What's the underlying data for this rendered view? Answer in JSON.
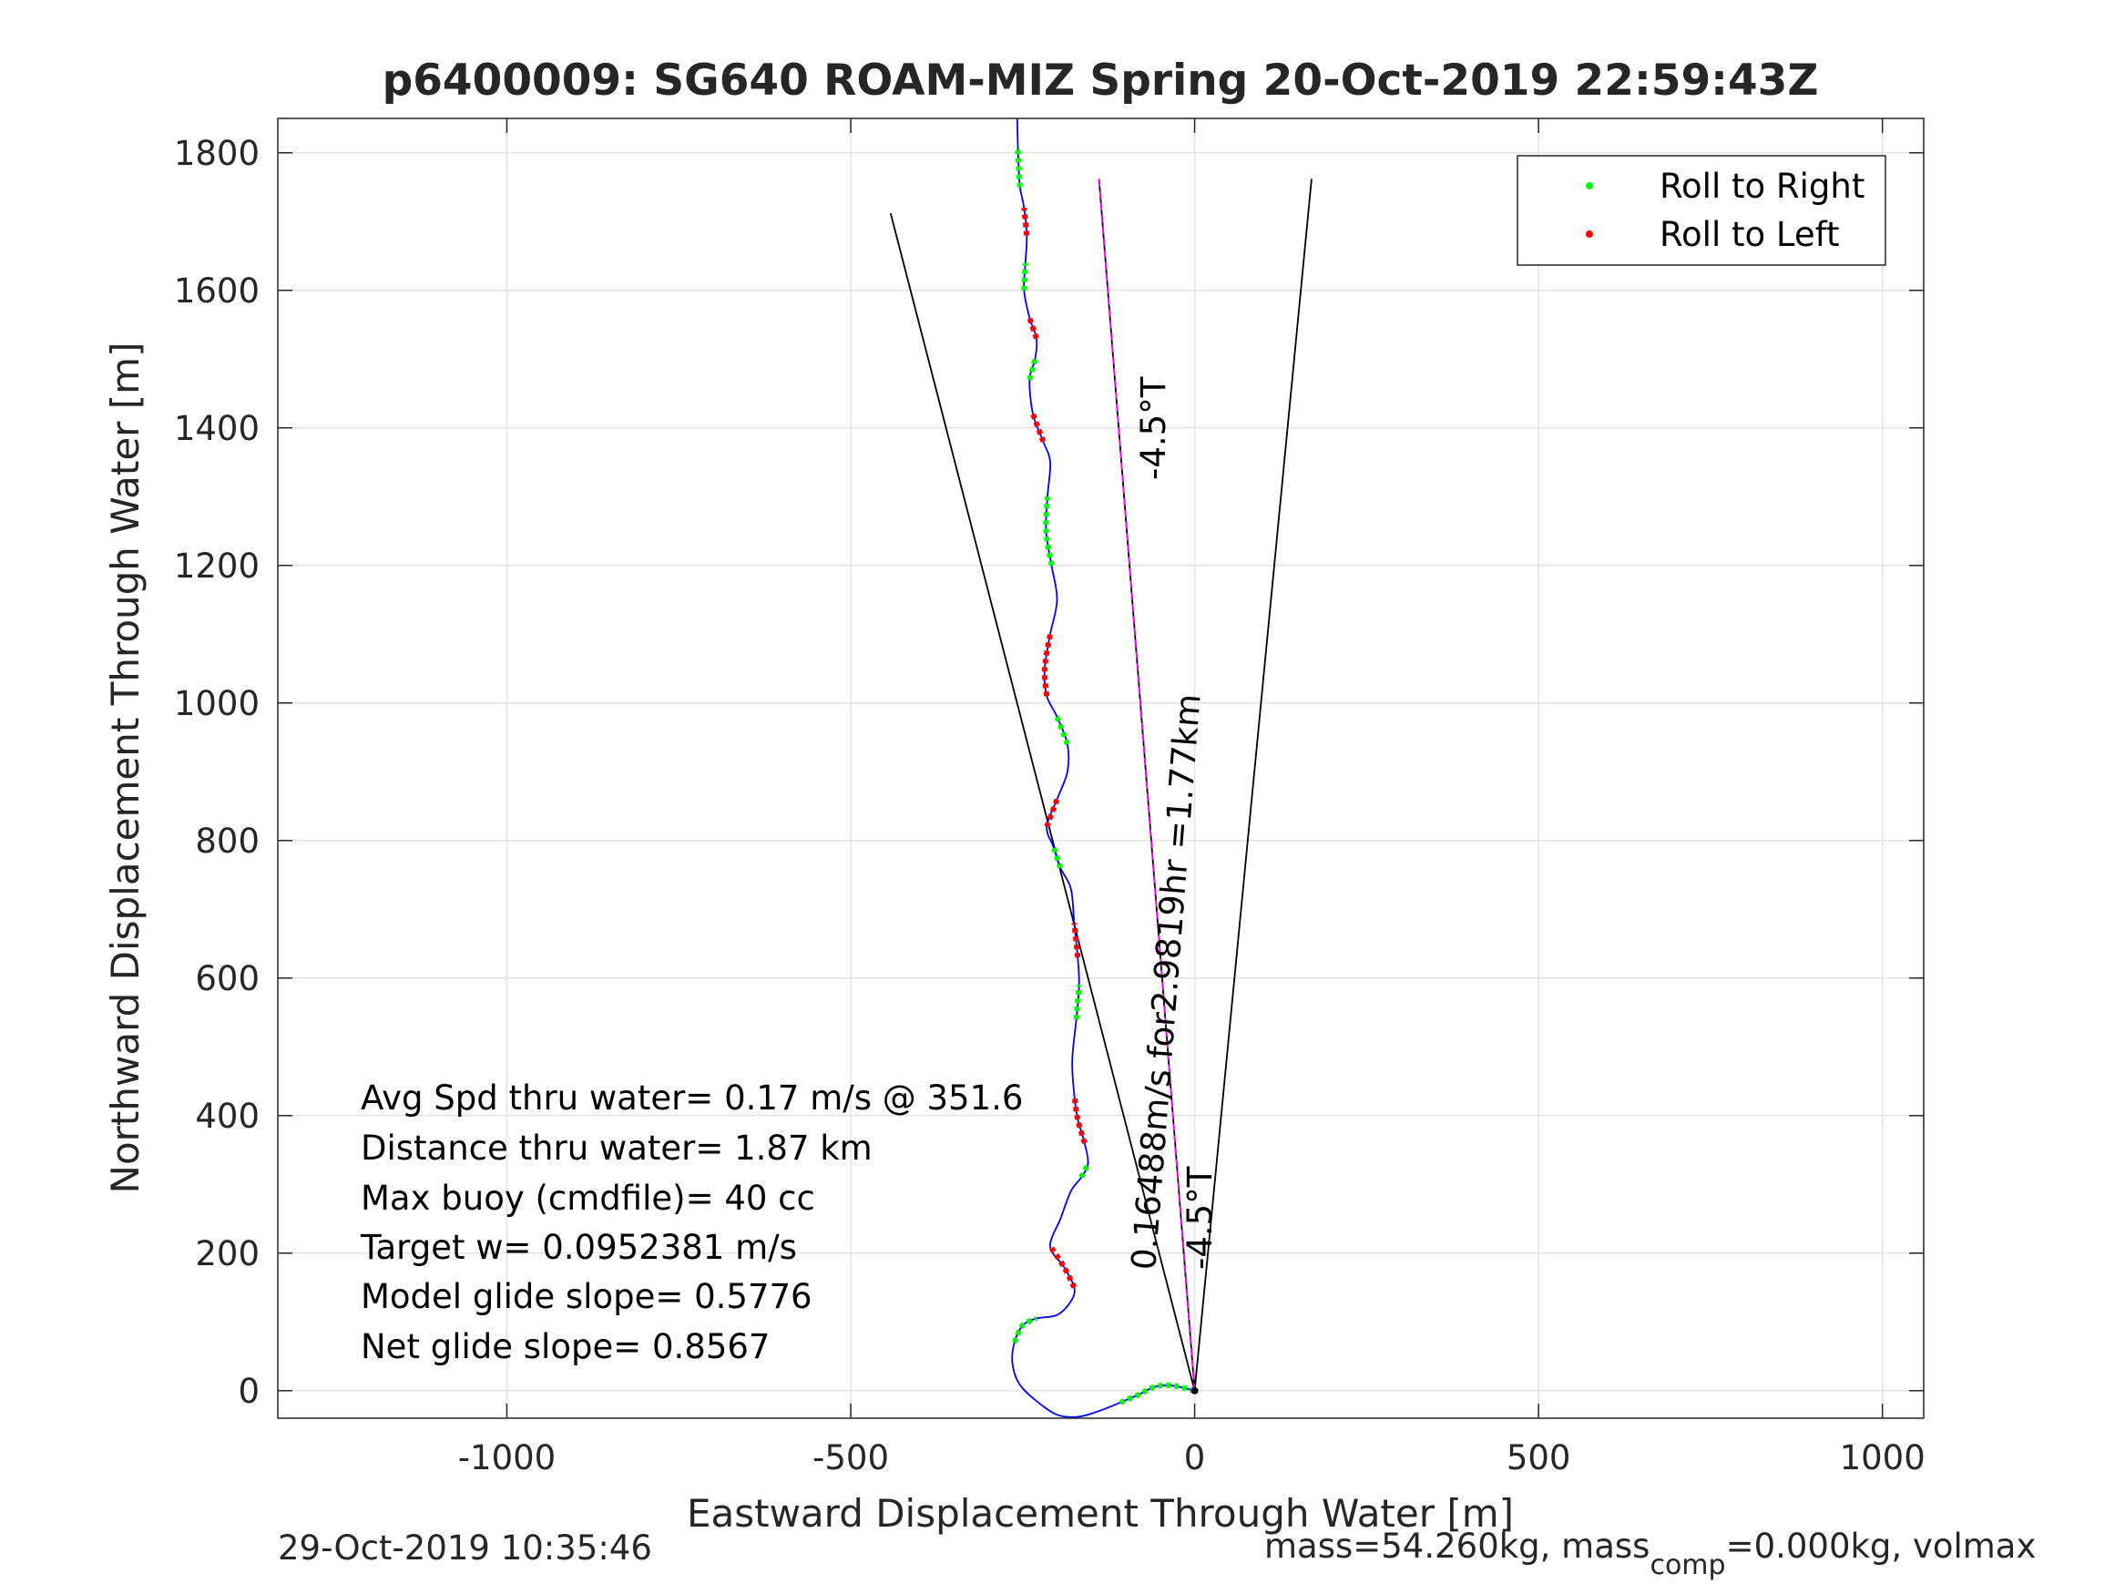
{
  "chart_data": {
    "type": "line",
    "title": "p6400009: SG640 ROAM-MIZ Spring 20-Oct-2019 22:59:43Z",
    "xlabel": "Eastward Displacement Through Water [m]",
    "ylabel": "Northward Displacement Through Water [m]",
    "xlim": [
      -1333,
      1060
    ],
    "ylim": [
      -40,
      1850
    ],
    "xticks": [
      -1000,
      -500,
      0,
      500,
      1000
    ],
    "xtick_labels": [
      "-1000",
      "-500",
      "0",
      "500",
      "1000"
    ],
    "yticks": [
      0,
      200,
      400,
      600,
      800,
      1000,
      1200,
      1400,
      1600,
      1800
    ],
    "ytick_labels": [
      "0",
      "200",
      "400",
      "600",
      "800",
      "1000",
      "1200",
      "1400",
      "1600",
      "1800"
    ],
    "grid": true,
    "legend_position": "top-right",
    "legend": [
      {
        "label": "Roll to Right",
        "color": "#00ff00"
      },
      {
        "label": "Roll to Left",
        "color": "#ff0000"
      }
    ],
    "track": {
      "color": "#0000ff",
      "x": [
        0,
        -20,
        -40,
        -60,
        -80,
        -110,
        -140,
        -170,
        -200,
        -230,
        -255,
        -265,
        -262,
        -250,
        -230,
        -200,
        -180,
        -175,
        -190,
        -210,
        -195,
        -180,
        -165,
        -155,
        -160,
        -170,
        -175,
        -178,
        -172,
        -168,
        -170,
        -175,
        -180,
        -195,
        -205,
        -215,
        -200,
        -185,
        -185,
        -200,
        -215,
        -218,
        -210,
        -200,
        -208,
        -216,
        -214,
        -210,
        -220,
        -235,
        -240,
        -232,
        -230,
        -240,
        -248,
        -246,
        -244,
        -248,
        -254,
        -256,
        -257,
        -258
      ],
      "y": [
        0,
        5,
        8,
        5,
        -5,
        -18,
        -30,
        -38,
        -35,
        -15,
        10,
        40,
        70,
        95,
        105,
        110,
        130,
        150,
        180,
        210,
        250,
        290,
        310,
        330,
        360,
        395,
        430,
        480,
        540,
        590,
        630,
        680,
        730,
        760,
        790,
        820,
        860,
        900,
        940,
        980,
        1010,
        1050,
        1100,
        1150,
        1200,
        1250,
        1300,
        1350,
        1380,
        1420,
        1470,
        1500,
        1530,
        1560,
        1600,
        1640,
        1680,
        1720,
        1750,
        1780,
        1810,
        1850
      ]
    },
    "right_roll_segments": [
      [
        0,
        5
      ],
      [
        12,
        14
      ],
      [
        22,
        23
      ],
      [
        28,
        29
      ],
      [
        33,
        34
      ],
      [
        38,
        39
      ],
      [
        44,
        46
      ],
      [
        50,
        51
      ],
      [
        54,
        55
      ],
      [
        58,
        60
      ]
    ],
    "left_roll_segments": [
      [
        17,
        19
      ],
      [
        24,
        26
      ],
      [
        30,
        31
      ],
      [
        35,
        36
      ],
      [
        40,
        42
      ],
      [
        48,
        49
      ],
      [
        52,
        53
      ],
      [
        56,
        57
      ]
    ],
    "reference_lines": [
      {
        "color": "#000000",
        "x": [
          0,
          -442
        ],
        "y": [
          0,
          1712
        ]
      },
      {
        "color": "#000000",
        "x": [
          0,
          170
        ],
        "y": [
          0,
          1762
        ]
      },
      {
        "color": "#000000",
        "x": [
          0,
          -139
        ],
        "y": [
          0,
          1762
        ]
      },
      {
        "color": "#ff00ff",
        "x": [
          0,
          -139
        ],
        "y": [
          0,
          1762
        ],
        "dashed": true
      }
    ],
    "annotations": {
      "rotated_speed": "0.16488m/s for2.9819hr =1.77km",
      "heading_upper": "-4.5°T",
      "heading_lower": "-4.5°T",
      "stats": [
        "Avg Spd thru water=  0.17 m/s @ 351.6",
        "Distance thru water=  1.87 km",
        "Max buoy (cmdfile)= 40 cc",
        "Target w= 0.0952381 m/s",
        "Model glide slope= 0.5776",
        "Net glide slope= 0.8567"
      ]
    },
    "footer_left": "29-Oct-2019 10:35:46",
    "footer_right": {
      "part1": "mass=54.260kg, mass",
      "subscript": "comp",
      "part2": "=0.000kg, volmax"
    }
  }
}
